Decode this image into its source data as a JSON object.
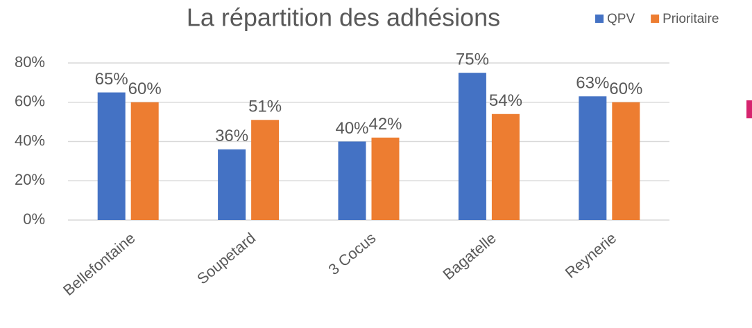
{
  "chart_data": {
    "type": "bar",
    "title": "La répartition des adhésions",
    "categories": [
      "Bellefontaine",
      "Soupetard",
      "3 Cocus",
      "Bagatelle",
      "Reynerie"
    ],
    "series": [
      {
        "name": "QPV",
        "color": "#4472c4",
        "values": [
          65,
          36,
          40,
          75,
          63
        ],
        "value_labels": [
          "65%",
          "36%",
          "40%",
          "75%",
          "63%"
        ]
      },
      {
        "name": "Prioritaire",
        "color": "#ed7d31",
        "values": [
          60,
          51,
          42,
          54,
          60
        ],
        "value_labels": [
          "60%",
          "51%",
          "42%",
          "54%",
          "60%"
        ]
      }
    ],
    "ylim": [
      0,
      80
    ],
    "yticks": [
      {
        "value": 0,
        "label": "0%"
      },
      {
        "value": 20,
        "label": "20%"
      },
      {
        "value": 40,
        "label": "40%"
      },
      {
        "value": 60,
        "label": "60%"
      },
      {
        "value": 80,
        "label": "80%"
      }
    ],
    "grid": true,
    "legend": "top-right"
  }
}
